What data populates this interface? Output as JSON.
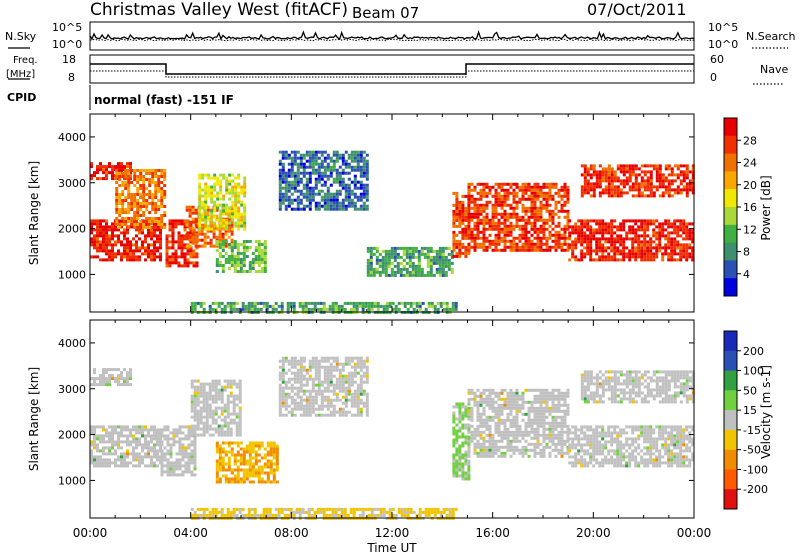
{
  "header": {
    "title": "Christmas Valley West (fitACF)",
    "beam": "Beam 07",
    "date": "07/Oct/2011"
  },
  "noise_panel": {
    "left_label": "N.Sky",
    "right_label": "N.Search",
    "left_ticks": [
      "10^5",
      "10^0"
    ],
    "right_ticks": [
      "10^5",
      "10^0"
    ]
  },
  "freq_panel": {
    "left_label_1": "Freq.",
    "left_label_2": "[MHz]",
    "right_label": "Nave",
    "left_ticks": [
      "18",
      "8"
    ],
    "right_ticks": [
      "60",
      "0"
    ]
  },
  "cpid": {
    "label": "CPID",
    "text": "normal (fast) -151 IF"
  },
  "colors": {
    "power": [
      "#0000e0",
      "#2a50b4",
      "#3e8f6e",
      "#40b040",
      "#a8d83a",
      "#f0e800",
      "#f8a800",
      "#f07000",
      "#f03000",
      "#e80000"
    ],
    "velocity": [
      "#e01010",
      "#ff5a00",
      "#f08c00",
      "#f2c400",
      "#c0c0c0",
      "#70d040",
      "#30a040",
      "#2a50b4",
      "#1a2ab8"
    ]
  },
  "chart_data": [
    {
      "type": "heatmap",
      "name": "power",
      "xlabel": "",
      "ylabel": "Slant Range [km]",
      "xlim": [
        "00:00",
        "24:00"
      ],
      "ylim": [
        180,
        4500
      ],
      "yticks": [
        1000,
        2000,
        3000,
        4000
      ],
      "colorbar_label": "Power [dB]",
      "colorbar_range": [
        0,
        32
      ],
      "colorbar_ticks": [
        4,
        8,
        12,
        16,
        20,
        24,
        28
      ],
      "regions": [
        {
          "t0": 0.0,
          "t1": 2.8,
          "r0": 1300,
          "r1": 2200,
          "value": 29
        },
        {
          "t0": 0.0,
          "t1": 1.6,
          "r0": 3100,
          "r1": 3450,
          "value": 28
        },
        {
          "t0": 1.0,
          "t1": 3.0,
          "r0": 2000,
          "r1": 3300,
          "value": 24
        },
        {
          "t0": 3.0,
          "t1": 4.2,
          "r0": 1200,
          "r1": 2200,
          "value": 28
        },
        {
          "t0": 3.8,
          "t1": 5.6,
          "r0": 1600,
          "r1": 2500,
          "value": 25
        },
        {
          "t0": 4.3,
          "t1": 6.2,
          "r0": 2000,
          "r1": 3200,
          "value": 16
        },
        {
          "t0": 5.0,
          "t1": 7.0,
          "r0": 1050,
          "r1": 1750,
          "value": 12
        },
        {
          "t0": 7.5,
          "t1": 11.0,
          "r0": 2400,
          "r1": 3700,
          "value": 6
        },
        {
          "t0": 11.0,
          "t1": 14.4,
          "r0": 1000,
          "r1": 1600,
          "value": 10
        },
        {
          "t0": 14.4,
          "t1": 15.0,
          "r0": 1400,
          "r1": 2800,
          "value": 27
        },
        {
          "t0": 15.0,
          "t1": 19.0,
          "r0": 1500,
          "r1": 3000,
          "value": 27
        },
        {
          "t0": 19.0,
          "t1": 24.0,
          "r0": 1300,
          "r1": 2200,
          "value": 29
        },
        {
          "t0": 19.5,
          "t1": 24.0,
          "r0": 2700,
          "r1": 3400,
          "value": 28
        },
        {
          "t0": 4.0,
          "t1": 14.5,
          "r0": 180,
          "r1": 400,
          "value": 10
        }
      ]
    },
    {
      "type": "heatmap",
      "name": "velocity",
      "xlabel": "Time UT",
      "ylabel": "Slant Range [km]",
      "xlim": [
        "00:00",
        "24:00"
      ],
      "xticks": [
        "00:00",
        "04:00",
        "08:00",
        "12:00",
        "16:00",
        "20:00",
        "00:00"
      ],
      "ylim": [
        180,
        4500
      ],
      "yticks": [
        1000,
        2000,
        3000,
        4000
      ],
      "colorbar_label": "Velocity [m s-1]",
      "colorbar_range": [
        -250,
        250
      ],
      "colorbar_ticks": [
        200,
        100,
        50,
        15,
        -15,
        -50,
        -100,
        -200
      ],
      "regions": [
        {
          "t0": 0.0,
          "t1": 2.8,
          "r0": 1300,
          "r1": 2200,
          "value": 0
        },
        {
          "t0": 0.0,
          "t1": 1.6,
          "r0": 3100,
          "r1": 3450,
          "value": 0
        },
        {
          "t0": 2.8,
          "t1": 4.2,
          "r0": 1100,
          "r1": 2200,
          "value": 0
        },
        {
          "t0": 4.0,
          "t1": 6.0,
          "r0": 2000,
          "r1": 3200,
          "value": 0
        },
        {
          "t0": 5.0,
          "t1": 7.5,
          "r0": 950,
          "r1": 1850,
          "value": -80
        },
        {
          "t0": 7.5,
          "t1": 11.0,
          "r0": 2400,
          "r1": 3700,
          "value": 0
        },
        {
          "t0": 14.4,
          "t1": 15.0,
          "r0": 1000,
          "r1": 2700,
          "value": 40
        },
        {
          "t0": 15.0,
          "t1": 19.0,
          "r0": 1500,
          "r1": 3000,
          "value": 0
        },
        {
          "t0": 19.0,
          "t1": 24.0,
          "r0": 1300,
          "r1": 2200,
          "value": 0
        },
        {
          "t0": 19.5,
          "t1": 24.0,
          "r0": 2700,
          "r1": 3400,
          "value": 0
        },
        {
          "t0": 4.0,
          "t1": 14.5,
          "r0": 180,
          "r1": 400,
          "value": -40
        }
      ]
    }
  ]
}
